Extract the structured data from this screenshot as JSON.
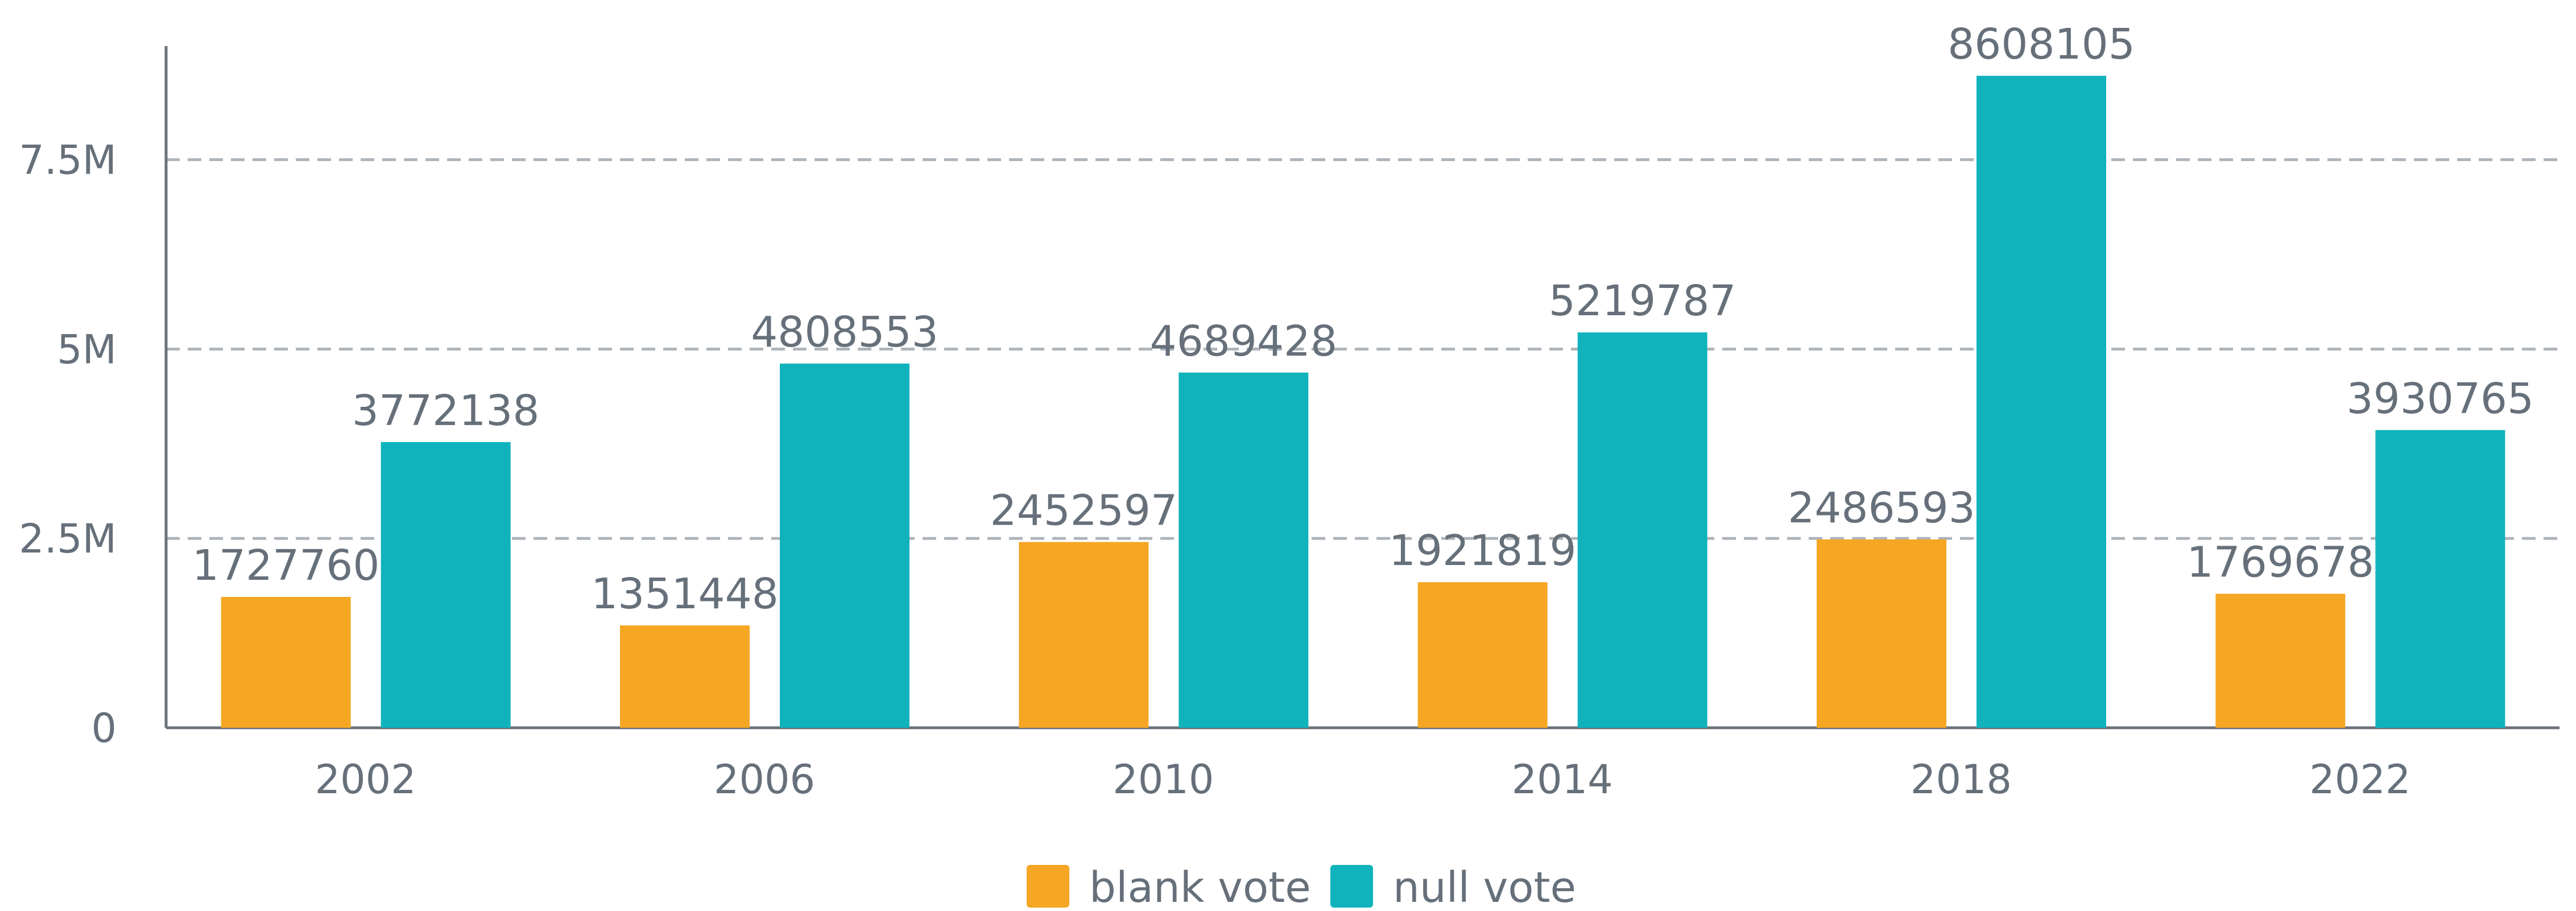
{
  "chart_data": {
    "type": "bar",
    "categories": [
      "2002",
      "2006",
      "2010",
      "2014",
      "2018",
      "2022"
    ],
    "series": [
      {
        "name": "blank vote",
        "color": "#f5a623",
        "values": [
          1727760,
          1351448,
          2452597,
          1921819,
          2486593,
          1769678
        ]
      },
      {
        "name": "null vote",
        "color": "#10b3bc",
        "values": [
          3772138,
          4808553,
          4689428,
          5219787,
          8608105,
          3930765
        ]
      }
    ],
    "ylim": [
      0,
      9000000
    ],
    "yticks": [
      0,
      {
        "value": 2500000,
        "label": "2.5M"
      },
      {
        "value": 5000000,
        "label": "5M"
      },
      {
        "value": 7500000,
        "label": "7.5M"
      }
    ],
    "grid": true,
    "legend": "bottom"
  }
}
